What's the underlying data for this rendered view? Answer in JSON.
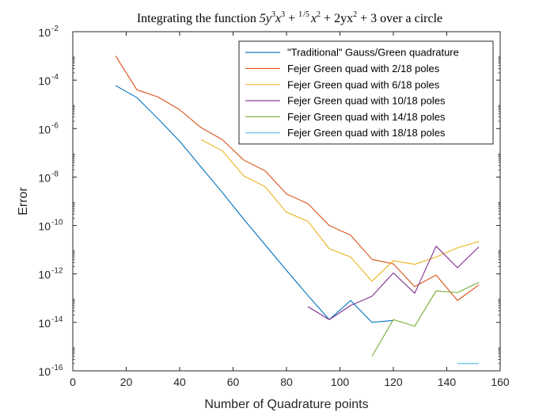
{
  "chart_data": {
    "type": "line",
    "title_parts": [
      "Integrating the function ",
      "5y",
      "3",
      "x",
      "3",
      " + ",
      "1",
      "5",
      "x",
      "2",
      " + 2yx",
      "2",
      " + 3 over a circle"
    ],
    "xlabel": "Number of Quadrature points",
    "ylabel": "Error",
    "xlim": [
      0,
      160
    ],
    "ylim_log10": [
      -16,
      -2
    ],
    "y_scale": "log",
    "x_ticks": [
      0,
      20,
      40,
      60,
      80,
      100,
      120,
      140,
      160
    ],
    "y_ticks": [
      {
        "base": "10",
        "exp": "-16",
        "v": -16
      },
      {
        "base": "10",
        "exp": "-14",
        "v": -14
      },
      {
        "base": "10",
        "exp": "-12",
        "v": -12
      },
      {
        "base": "10",
        "exp": "-10",
        "v": -10
      },
      {
        "base": "10",
        "exp": "-8",
        "v": -8
      },
      {
        "base": "10",
        "exp": "-6",
        "v": -6
      },
      {
        "base": "10",
        "exp": "-4",
        "v": -4
      },
      {
        "base": "10",
        "exp": "-2",
        "v": -2
      }
    ],
    "grid": false,
    "legend_position": "top-right",
    "series": [
      {
        "name": "\"Traditional\" Gauss/Green quadrature",
        "color": "#0072BD",
        "x": [
          16,
          24,
          32,
          40,
          48,
          56,
          64,
          72,
          80,
          88,
          96,
          104,
          112,
          120
        ],
        "y": [
          6e-05,
          1.9e-05,
          2.5e-06,
          3e-07,
          2.6e-08,
          2.3e-09,
          1.8e-10,
          1.6e-11,
          1.4e-12,
          1.3e-13,
          1.3e-14,
          8e-14,
          1e-14,
          1.2e-14
        ]
      },
      {
        "name": "Fejer Green quad with 2/18 poles",
        "color": "#D95319",
        "x": [
          16,
          24,
          32,
          40,
          48,
          56,
          64,
          72,
          80,
          88,
          96,
          104,
          112,
          120,
          128,
          136,
          144,
          152
        ],
        "y": [
          0.001,
          4e-05,
          2e-05,
          6e-06,
          1.1e-06,
          3.5e-07,
          5e-08,
          1.8e-08,
          2e-09,
          8e-10,
          1e-10,
          4e-11,
          4e-12,
          2.6e-12,
          3e-13,
          9e-13,
          8e-14,
          3.5e-13
        ]
      },
      {
        "name": "Fejer Green quad with 6/18 poles",
        "color": "#EDB120",
        "x": [
          48,
          56,
          64,
          72,
          80,
          88,
          96,
          104,
          112,
          120,
          128,
          136,
          144,
          152
        ],
        "y": [
          3.5e-07,
          1.2e-07,
          1.1e-08,
          4e-09,
          3.5e-10,
          1.5e-10,
          1.1e-11,
          5e-12,
          5e-13,
          3.5e-12,
          2.5e-12,
          5e-12,
          1.2e-11,
          2.2e-11
        ]
      },
      {
        "name": "Fejer Green quad with 10/18 poles",
        "color": "#7E2F8E",
        "x": [
          88,
          96,
          104,
          112,
          120,
          128,
          136,
          144,
          152
        ],
        "y": [
          4.5e-14,
          1.3e-14,
          5e-14,
          1.2e-13,
          1.1e-12,
          1.6e-13,
          1.4e-11,
          1.8e-12,
          1.3e-11
        ]
      },
      {
        "name": "Fejer Green quad with 14/18 poles",
        "color": "#77AC30",
        "x": [
          112,
          120,
          128,
          136,
          144,
          152
        ],
        "y": [
          4e-16,
          1.3e-14,
          7e-15,
          2e-13,
          1.7e-13,
          4.5e-13
        ]
      },
      {
        "name": "Fejer Green quad with 18/18 poles",
        "color": "#4DBEEE",
        "x": [
          144,
          152
        ],
        "y": [
          2e-16,
          2e-16
        ]
      }
    ]
  }
}
